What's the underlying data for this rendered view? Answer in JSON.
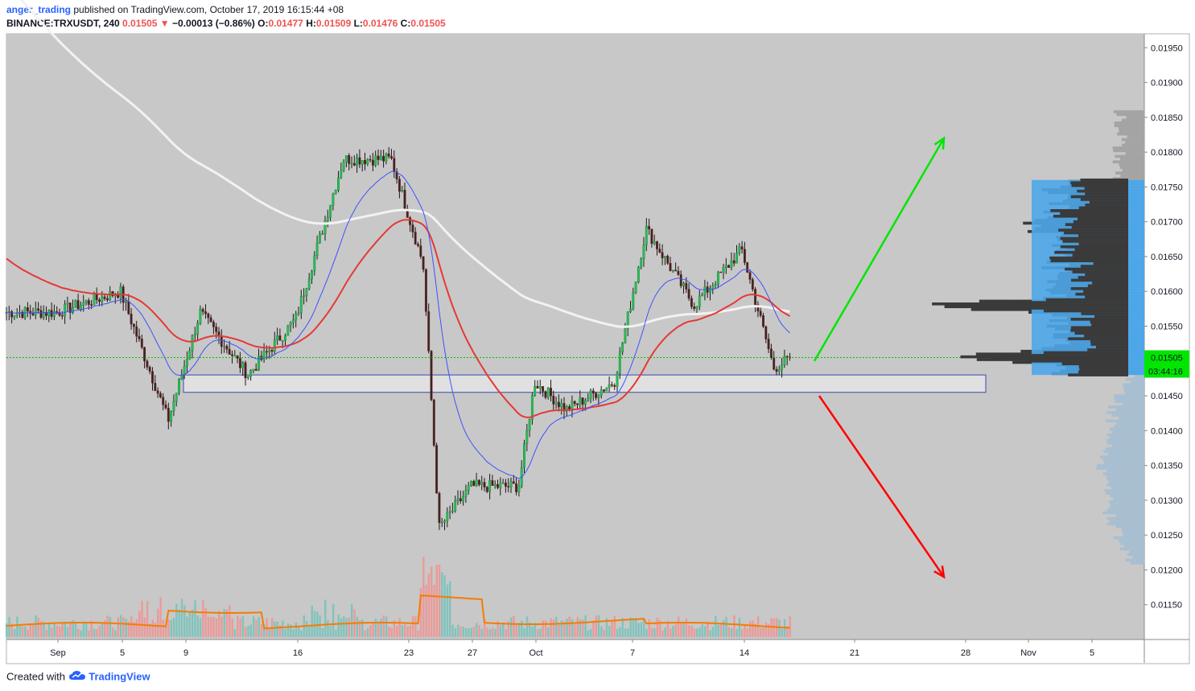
{
  "header": {
    "user": "anger_trading",
    "published": "published on TradingView.com, October 17, 2019 16:15:44 +08",
    "symbol_line": "BINANCE:TRXUSDT, 240",
    "last": "0.01505",
    "down_arrow": "▼",
    "change": "−0.00013 (−0.86%)",
    "o_label": "O:",
    "o_value": "0.01477",
    "h_label": "H:",
    "h_value": "0.01509",
    "l_label": "L:",
    "l_value": "0.01476",
    "c_label": "C:",
    "c_value": "0.01505"
  },
  "footer": {
    "created_with": "Created with",
    "brand": "TradingView",
    "logo_icon": "tradingview-cloud-icon"
  },
  "colors": {
    "plot_bg": "#c8c8c8",
    "up": "#26a69a",
    "down": "#ef5350",
    "ema_fast": "#3f51ff",
    "ema_mid": "#e53935",
    "ema_slow": "#f2f2f2",
    "volume_ma": "#f57c00",
    "zone_fill": "#e0e0e0",
    "zone_border": "#3949ab",
    "arrow_up": "#00e600",
    "arrow_down": "#ff0000",
    "profile_value_area": "#4da6e8",
    "profile_dark": "#3a3a3a",
    "profile_light": "#a4a4a4",
    "profile_faint": "#a8bfd1",
    "price_tag": "#00e600"
  },
  "chart_data": {
    "type": "candlestick",
    "symbol": "BINANCE:TRXUSDT",
    "interval": "240",
    "x_labels": [
      "Sep",
      "5",
      "9",
      "16",
      "23",
      "27",
      "Oct",
      "7",
      "14",
      "21",
      "28",
      "Nov",
      "5"
    ],
    "y_ticks": [
      "0.01950",
      "0.01900",
      "0.01850",
      "0.01800",
      "0.01750",
      "0.01700",
      "0.01650",
      "0.01600",
      "0.01550",
      "0.01500",
      "0.01450",
      "0.01400",
      "0.01350",
      "0.01300",
      "0.01250",
      "0.01200",
      "0.01150"
    ],
    "ylim": [
      0.011,
      0.0197
    ],
    "last_price_tag": "0.01505",
    "countdown_tag": "03:44:16",
    "last_price": 0.01505,
    "anchor_prices": [
      {
        "label": "Sep 1",
        "price": 0.0157
      },
      {
        "label": "Sep 5",
        "price": 0.016
      },
      {
        "label": "Sep 8",
        "price": 0.01415
      },
      {
        "label": "Sep 10",
        "price": 0.0157
      },
      {
        "label": "Sep 13",
        "price": 0.0148
      },
      {
        "label": "Sep 16",
        "price": 0.0156
      },
      {
        "label": "Sep 19",
        "price": 0.0179
      },
      {
        "label": "Sep 22",
        "price": 0.0179
      },
      {
        "label": "Sep 24",
        "price": 0.0164
      },
      {
        "label": "Sep 25",
        "price": 0.0126
      },
      {
        "label": "Sep 27",
        "price": 0.0132
      },
      {
        "label": "Sep 30",
        "price": 0.0132
      },
      {
        "label": "Oct 1",
        "price": 0.0147
      },
      {
        "label": "Oct 3",
        "price": 0.0143
      },
      {
        "label": "Oct 6",
        "price": 0.0147
      },
      {
        "label": "Oct 8",
        "price": 0.0169
      },
      {
        "label": "Oct 11",
        "price": 0.0158
      },
      {
        "label": "Oct 14",
        "price": 0.0166
      },
      {
        "label": "Oct 16",
        "price": 0.0149
      },
      {
        "label": "Oct 17",
        "price": 0.01505
      }
    ],
    "support_zone": {
      "from": 0.01455,
      "to": 0.0148
    },
    "projections": [
      {
        "direction": "up",
        "target": 0.0182
      },
      {
        "direction": "down",
        "target": 0.0119
      }
    ],
    "indicators": [
      "EMA fast (blue)",
      "EMA mid (red)",
      "EMA slow (white)",
      "Volume",
      "Volume MA (orange)",
      "Volume profile"
    ]
  }
}
